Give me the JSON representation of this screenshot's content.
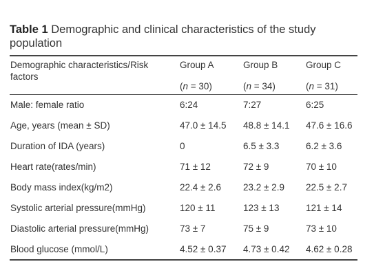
{
  "caption": {
    "label": "Table 1",
    "text": "Demographic and clinical characteristics of the study population"
  },
  "header": {
    "first": "Demographic characteristics/Risk factors",
    "groups": [
      {
        "name": "Group A",
        "n_var": "n",
        "n_rest": " = 30)"
      },
      {
        "name": "Group B",
        "n_var": "n",
        "n_rest": " = 34)"
      },
      {
        "name": "Group C",
        "n_var": "n",
        "n_rest": " = 31)"
      }
    ]
  },
  "rows": [
    {
      "label": "Male: female ratio",
      "a": "6:24",
      "b": "7:27",
      "c": "6:25"
    },
    {
      "label": "Age, years (mean ± SD)",
      "a": "47.0 ± 14.5",
      "b": "48.8 ± 14.1",
      "c": "47.6 ± 16.6"
    },
    {
      "label": "Duration of IDA (years)",
      "a": "0",
      "b": "6.5 ± 3.3",
      "c": "6.2 ± 3.6"
    },
    {
      "label": "Heart rate(rates/min)",
      "a": "71 ± 12",
      "b": "72 ± 9",
      "c": "70 ± 10"
    },
    {
      "label": "Body mass index(kg/m2)",
      "a": "22.4 ± 2.6",
      "b": "23.2 ± 2.9",
      "c": "22.5 ± 2.7"
    },
    {
      "label": "Systolic arterial pressure(mmHg)",
      "a": "120 ± 11",
      "b": "123 ± 13",
      "c": "121 ± 14"
    },
    {
      "label": "Diastolic arterial pressure(mmHg)",
      "a": "73 ± 7",
      "b": "75 ± 9",
      "c": "73 ± 10"
    },
    {
      "label": "Blood glucose (mmol/L)",
      "a": "4.52 ± 0.37",
      "b": "4.73 ± 0.42",
      "c": "4.62 ± 0.28"
    }
  ]
}
